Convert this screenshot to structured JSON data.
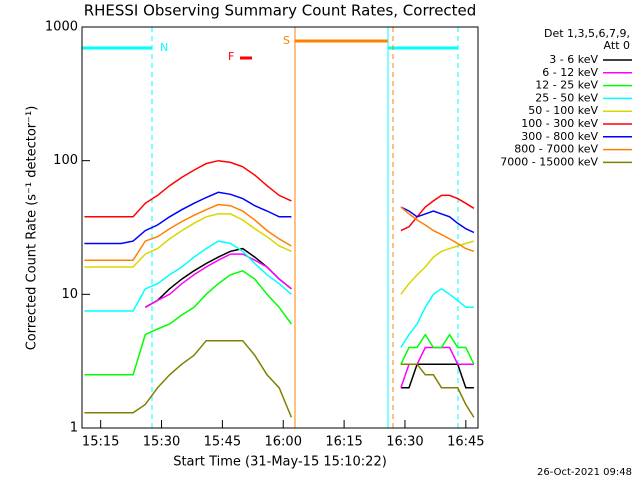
{
  "chart_data": {
    "type": "line",
    "title": "RHESSI Observing Summary Count Rates, Corrected",
    "xlabel": "Start Time (31-May-15 15:10:22)",
    "ylabel": "Corrected Count Rate (s⁻¹ detector⁻¹)",
    "log_y": true,
    "ylim": [
      1,
      1000
    ],
    "yticks": [
      1,
      10,
      100,
      1000
    ],
    "xlim": [
      10.4,
      108
    ],
    "xticks": [
      {
        "value": 15,
        "label": "15:15"
      },
      {
        "value": 30,
        "label": "15:30"
      },
      {
        "value": 45,
        "label": "15:45"
      },
      {
        "value": 60,
        "label": "16:00"
      },
      {
        "value": 75,
        "label": "16:15"
      },
      {
        "value": 90,
        "label": "16:30"
      },
      {
        "value": 105,
        "label": "16:45"
      }
    ],
    "legend_title": [
      "Det 1,3,5,6,7,9,",
      "Att 0"
    ],
    "annotations": {
      "night": "N",
      "saa": "S",
      "flare": "F"
    },
    "footer": "26-Oct-2021 09:48",
    "x": [
      11,
      14,
      17,
      20,
      23,
      26,
      29,
      32,
      35,
      38,
      41,
      44,
      47,
      50,
      53,
      56,
      59,
      62,
      76,
      89,
      91,
      93,
      95,
      97,
      99,
      101,
      103,
      105,
      107
    ],
    "series": [
      {
        "name": "3 - 6 keV",
        "color": "#000000",
        "values": [
          null,
          null,
          null,
          null,
          null,
          8,
          9,
          11,
          13,
          15,
          17,
          19,
          21,
          22,
          19,
          16,
          13,
          11,
          null,
          2,
          2,
          3,
          3,
          3,
          3,
          3,
          3,
          2,
          2
        ]
      },
      {
        "name": "6 - 12 keV",
        "color": "#ff00ff",
        "values": [
          null,
          null,
          null,
          null,
          null,
          8,
          9,
          10,
          12,
          14,
          16,
          18,
          20,
          20,
          18,
          16,
          13,
          11,
          null,
          2,
          3,
          3,
          4,
          4,
          4,
          4,
          3,
          3,
          3
        ]
      },
      {
        "name": "12 - 25 keV",
        "color": "#00ff00",
        "values": [
          2.5,
          2.5,
          2.5,
          2.5,
          2.5,
          5,
          5.5,
          6,
          7,
          8,
          10,
          12,
          14,
          15,
          13,
          10,
          8,
          6,
          null,
          3,
          4,
          4,
          5,
          4,
          4,
          5,
          4,
          4,
          3
        ]
      },
      {
        "name": "25 - 50 keV",
        "color": "#00ffff",
        "values": [
          7.5,
          7.5,
          7.5,
          7.5,
          7.5,
          11,
          12,
          14,
          16,
          19,
          22,
          25,
          24,
          21,
          17,
          14,
          12,
          10,
          null,
          4,
          5,
          6,
          8,
          10,
          11,
          10,
          9,
          8,
          8
        ]
      },
      {
        "name": "50 - 100 keV",
        "color": "#d8d800",
        "values": [
          16,
          16,
          16,
          16,
          16,
          20,
          22,
          26,
          30,
          34,
          38,
          40,
          40,
          36,
          31,
          27,
          23,
          21,
          null,
          10,
          12,
          14,
          16,
          19,
          21,
          22,
          23,
          24,
          25
        ]
      },
      {
        "name": "100 - 300 keV",
        "color": "#ff0000",
        "values": [
          38,
          38,
          38,
          38,
          38,
          48,
          55,
          65,
          75,
          85,
          95,
          100,
          97,
          90,
          78,
          65,
          55,
          50,
          null,
          30,
          32,
          38,
          45,
          50,
          55,
          55,
          52,
          48,
          44
        ]
      },
      {
        "name": "300 - 800 keV",
        "color": "#0000ff",
        "values": [
          24,
          24,
          24,
          24,
          25,
          30,
          33,
          38,
          43,
          48,
          53,
          58,
          56,
          52,
          46,
          42,
          38,
          38,
          null,
          45,
          42,
          38,
          40,
          42,
          40,
          38,
          34,
          31,
          29
        ]
      },
      {
        "name": "800 - 7000 keV",
        "color": "#ff8000",
        "values": [
          18,
          18,
          18,
          18,
          18,
          25,
          27,
          31,
          35,
          39,
          43,
          47,
          46,
          42,
          36,
          30,
          26,
          23,
          null,
          45,
          40,
          36,
          33,
          30,
          28,
          26,
          24,
          22,
          21
        ]
      },
      {
        "name": "7000 - 15000 keV",
        "color": "#808000",
        "values": [
          1.3,
          1.3,
          1.3,
          1.3,
          1.3,
          1.5,
          2,
          2.5,
          3,
          3.5,
          4.5,
          4.5,
          4.5,
          4.5,
          3.5,
          2.5,
          2,
          1.2,
          null,
          3,
          3,
          3,
          2.5,
          2.5,
          2,
          2,
          2,
          1.5,
          1.2
        ]
      }
    ]
  }
}
